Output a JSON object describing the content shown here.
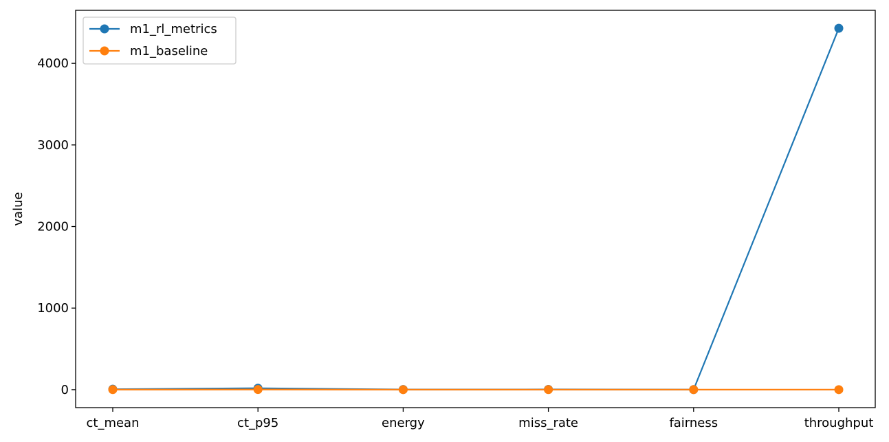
{
  "chart_data": {
    "type": "line",
    "categories": [
      "ct_mean",
      "ct_p95",
      "energy",
      "miss_rate",
      "fairness",
      "throughput"
    ],
    "series": [
      {
        "name": "m1_rl_metrics",
        "color": "#1f77b4",
        "values": [
          6,
          18,
          2,
          3,
          1,
          4430
        ]
      },
      {
        "name": "m1_baseline",
        "color": "#ff7f0e",
        "values": [
          1,
          2,
          0.5,
          0.8,
          0.7,
          0.5
        ]
      }
    ],
    "title": "",
    "xlabel": "",
    "ylabel": "value",
    "ylim": [
      -220,
      4650
    ],
    "yticks": [
      0,
      1000,
      2000,
      3000,
      4000
    ],
    "ytick_labels": [
      "0",
      "1000",
      "2000",
      "3000",
      "4000"
    ],
    "grid": false,
    "legend_position": "top-left",
    "marker": "circle"
  }
}
